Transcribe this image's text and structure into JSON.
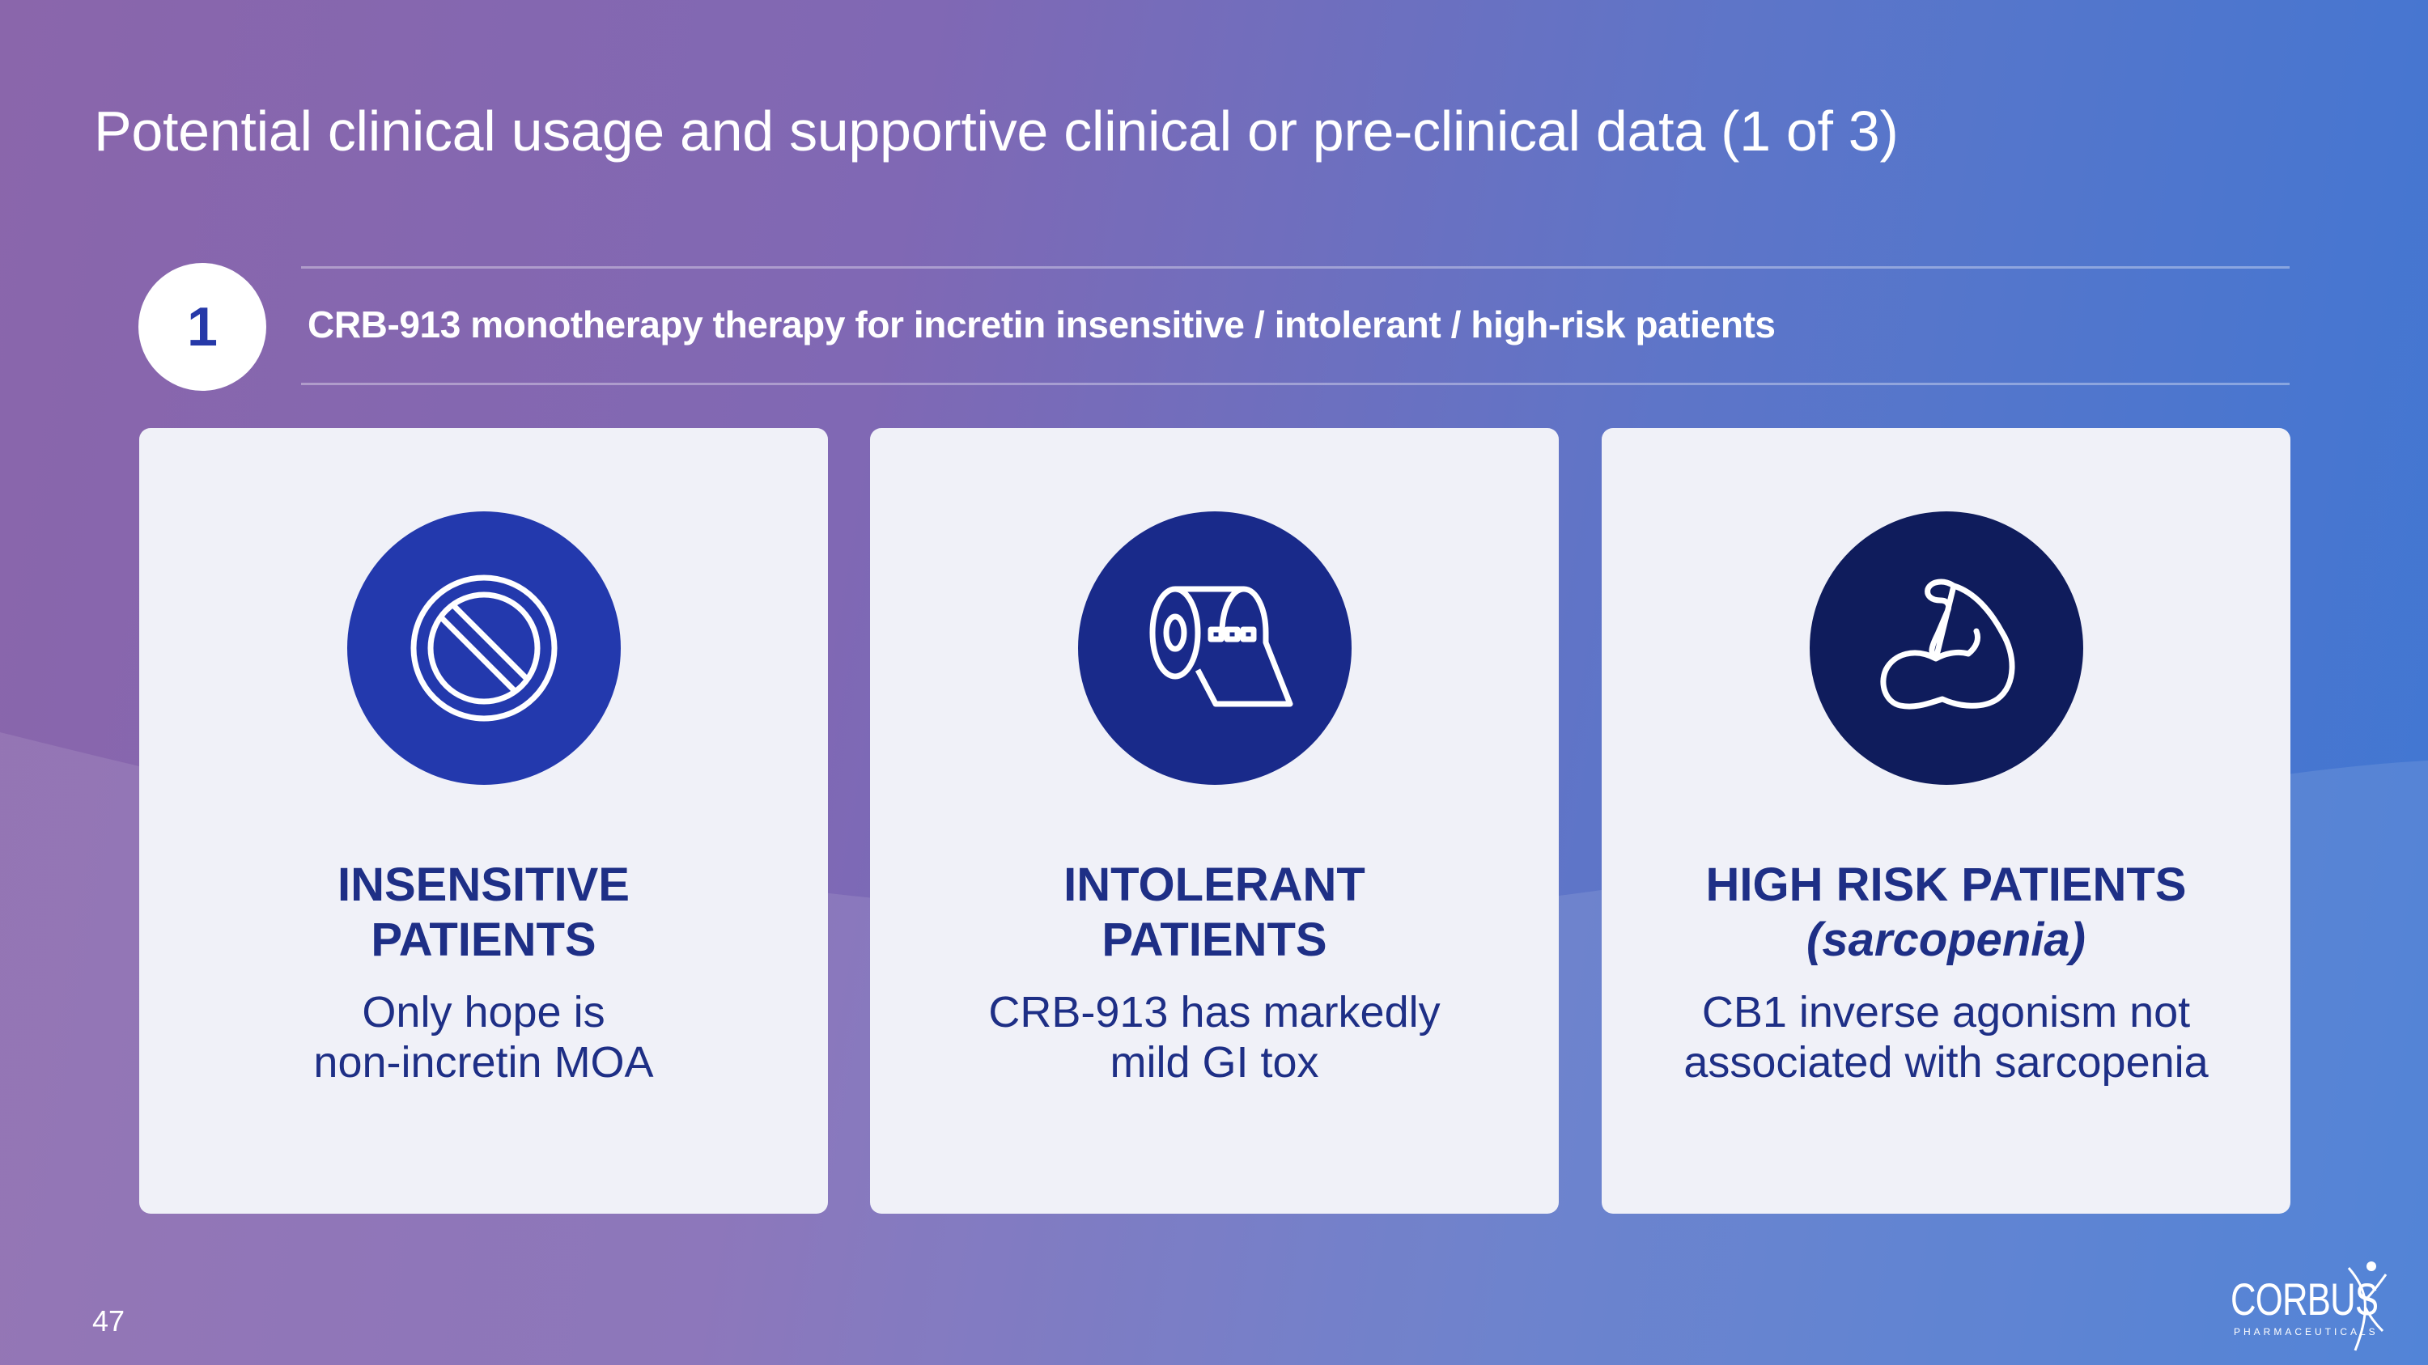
{
  "slide": {
    "title": "Potential clinical usage and supportive clinical or pre-clinical data (1 of 3)",
    "step_number": "1",
    "subtitle": "CRB-913 monotherapy therapy for incretin insensitive / intolerant / high-risk patients",
    "page_number": "47"
  },
  "cards": [
    {
      "icon": "prohibited-icon",
      "heading_line1": "INSENSITIVE",
      "heading_line2": "PATIENTS",
      "body_line1": "Only hope is",
      "body_line2": "non-incretin MOA"
    },
    {
      "icon": "toilet-paper-icon",
      "heading_line1": "INTOLERANT",
      "heading_line2": "PATIENTS",
      "body_line1": "CRB-913 has markedly",
      "body_line2": "mild GI tox"
    },
    {
      "icon": "flexed-bicep-icon",
      "heading_line1": "HIGH RISK PATIENTS",
      "heading_line2": "(sarcopenia)",
      "body_line1": "CB1 inverse agonism not",
      "body_line2": "associated with sarcopenia"
    }
  ],
  "logo": {
    "name": "CORBUS",
    "tagline": "PHARMACEUTICALS"
  },
  "colors": {
    "gradient_left": "#8a66ab",
    "gradient_right": "#3f77d3",
    "card_background": "#f0f1f8",
    "heading_text": "#1e2f86",
    "icon_circle_1": "#2339ad",
    "icon_circle_2": "#192a8a",
    "icon_circle_3": "#0f1c5c"
  }
}
